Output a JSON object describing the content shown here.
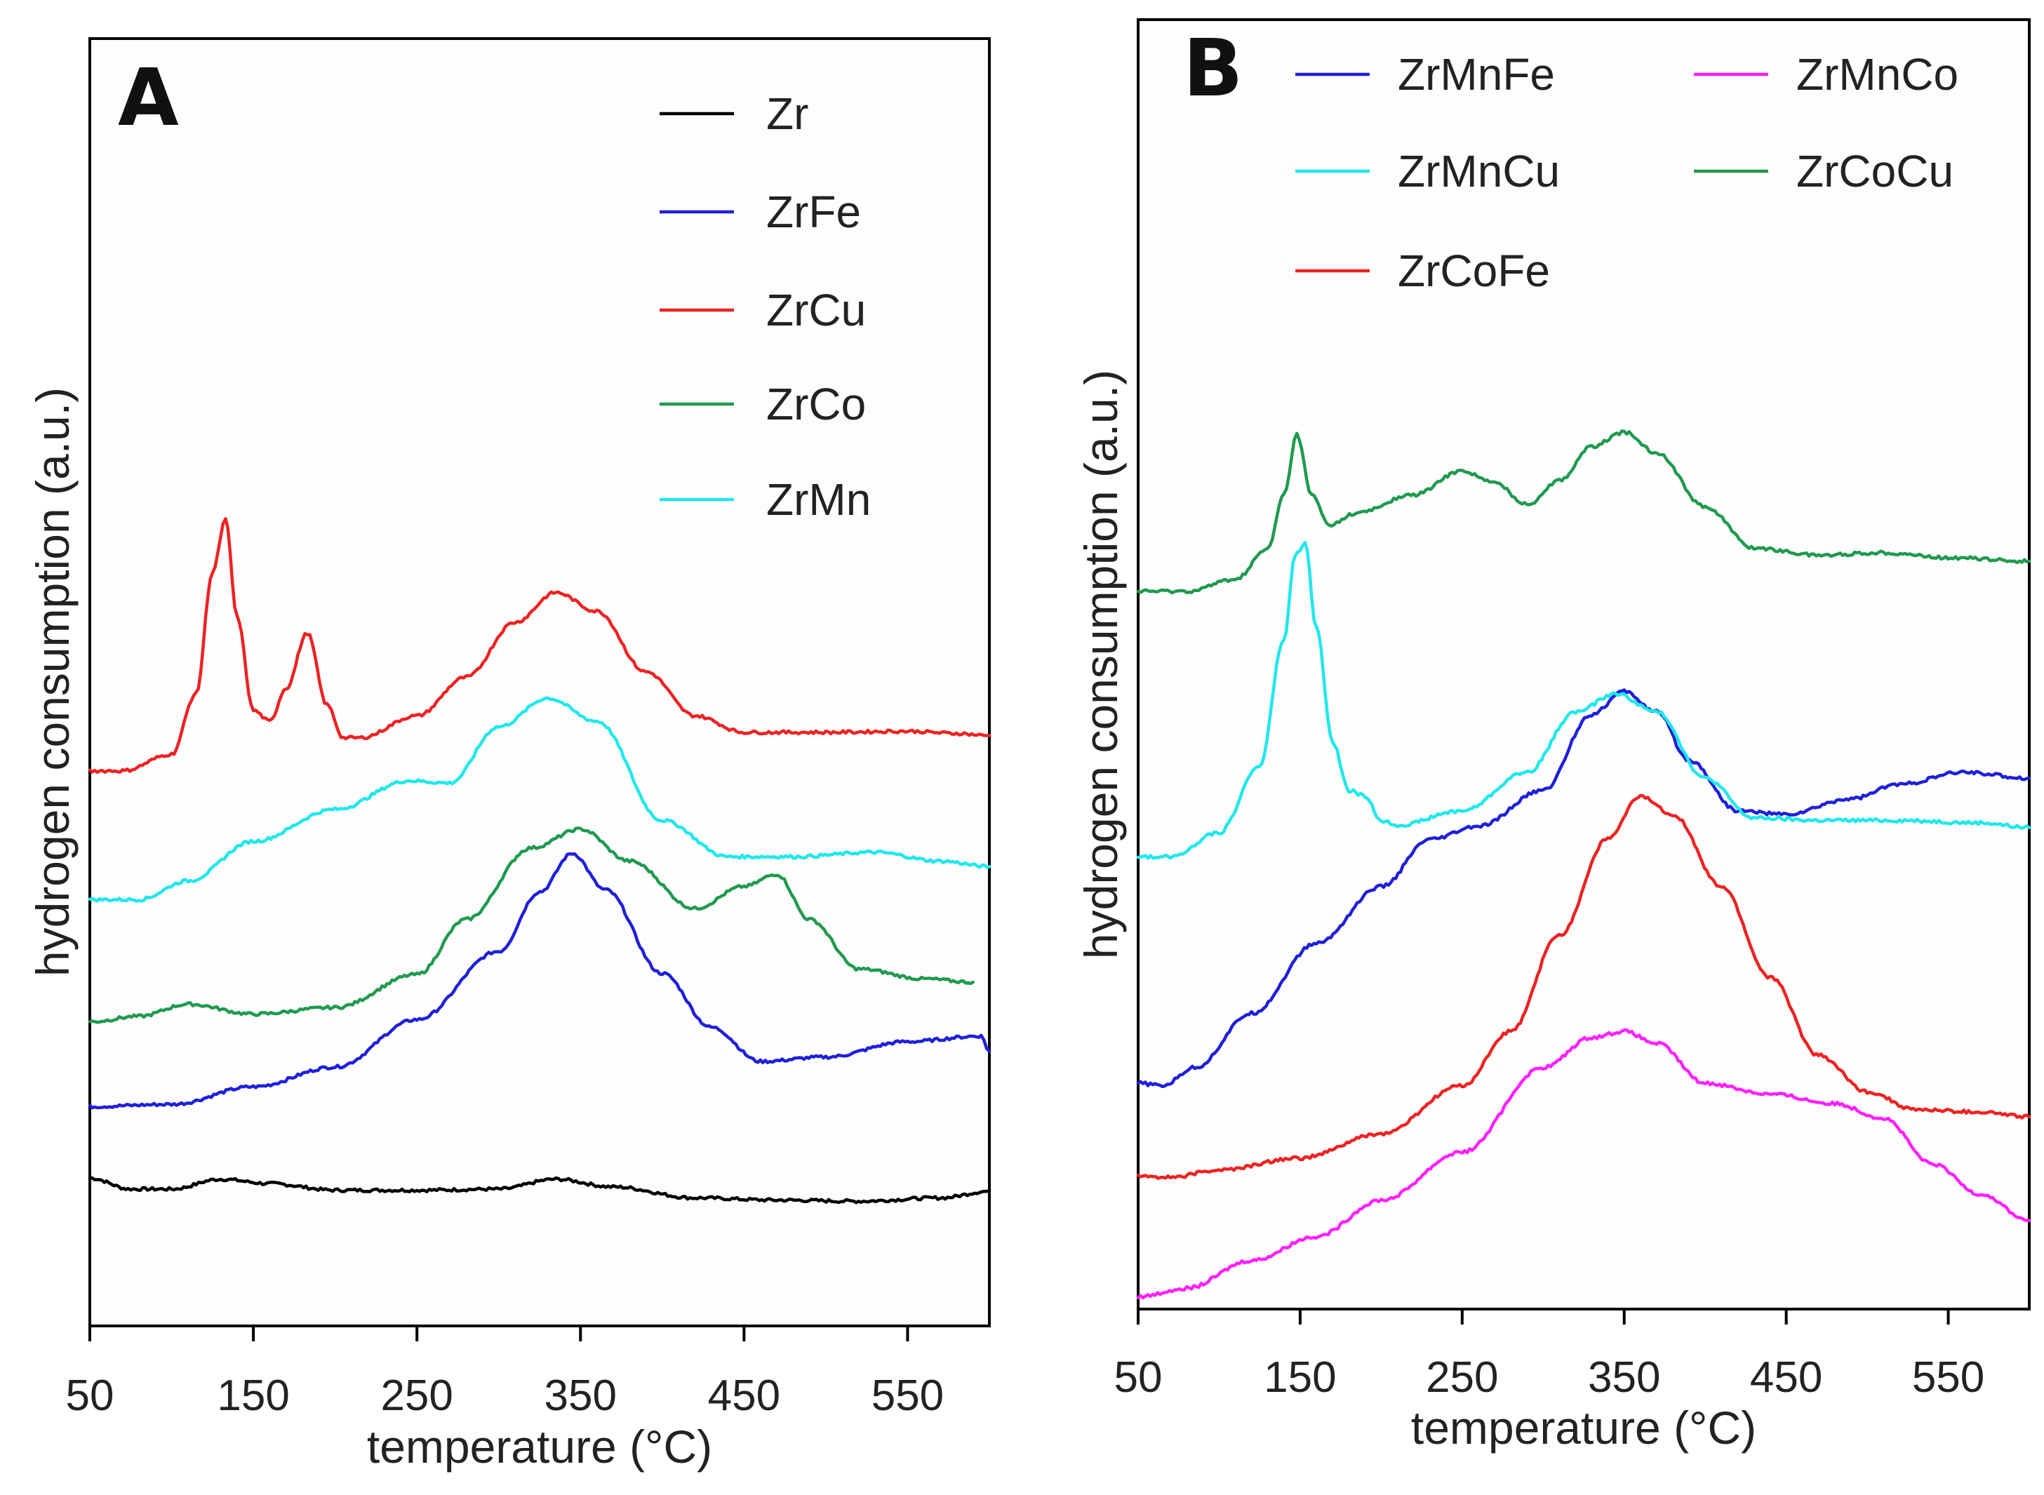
{
  "chart_data": [
    {
      "type": "line",
      "panel_label": "A",
      "xlabel": "temperature (°C)",
      "ylabel": "hydrogen consumption (a.u.)",
      "xlim": [
        50,
        600
      ],
      "xticks": [
        50,
        150,
        250,
        350,
        450,
        550
      ],
      "ylim": [
        0,
        100
      ],
      "y_tick_labels": false,
      "legend_position": "top-right",
      "series": [
        {
          "name": "Zr",
          "color": "#000000",
          "x": [
            50,
            75,
            100,
            130,
            160,
            200,
            250,
            300,
            335,
            370,
            420,
            470,
            520,
            570,
            600
          ],
          "y": [
            7.0,
            6.0,
            6.0,
            6.9,
            6.5,
            5.9,
            5.9,
            6.0,
            6.9,
            6.2,
            5.2,
            5.0,
            4.9,
            5.2,
            5.8
          ]
        },
        {
          "name": "ZrFe",
          "color": "#1f1fdb",
          "x": [
            50,
            100,
            150,
            200,
            250,
            300,
            325,
            345,
            365,
            400,
            430,
            460,
            500,
            550,
            595,
            600
          ],
          "y": [
            13.5,
            13.7,
            15.3,
            17.1,
            21.4,
            27.6,
            33.0,
            36.5,
            33.2,
            25.6,
            20.7,
            17.6,
            18.0,
            19.4,
            19.9,
            18.5
          ]
        },
        {
          "name": "ZrCo",
          "color": "#1f9a4f",
          "x": [
            50,
            80,
            110,
            150,
            200,
            250,
            280,
            320,
            350,
            380,
            420,
            450,
            470,
            490,
            520,
            560,
            590
          ],
          "y": [
            21.2,
            21.7,
            22.8,
            21.9,
            22.5,
            25.5,
            30.5,
            37.0,
            38.7,
            35.8,
            31.5,
            33.5,
            34.6,
            30.5,
            26.0,
            25.1,
            24.8
          ]
        },
        {
          "name": "ZrMn",
          "color": "#1fe8ec",
          "x": [
            50,
            80,
            110,
            150,
            200,
            245,
            270,
            300,
            330,
            360,
            400,
            440,
            480,
            530,
            570,
            600
          ],
          "y": [
            32.3,
            32.3,
            34.0,
            37.6,
            40.5,
            43.1,
            42.9,
            48.0,
            50.6,
            48.5,
            39.5,
            36.2,
            36.2,
            36.6,
            35.8,
            35.3
          ]
        },
        {
          "name": "ZrCu",
          "color": "#ee2222",
          "x": [
            50,
            70,
            100,
            115,
            125,
            133,
            140,
            150,
            160,
            170,
            183,
            195,
            205,
            215,
            250,
            280,
            310,
            335,
            360,
            390,
            420,
            450,
            500,
            550,
            580,
            600
          ],
          "y": [
            44.0,
            44.0,
            45.5,
            51.0,
            62.0,
            66.8,
            58.0,
            49.5,
            48.5,
            51.5,
            56.5,
            50.0,
            47.0,
            47.0,
            49.0,
            52.5,
            57.5,
            60.2,
            58.5,
            53.0,
            49.0,
            47.5,
            47.5,
            47.6,
            47.4,
            47.2
          ]
        }
      ]
    },
    {
      "type": "line",
      "panel_label": "B",
      "xlabel": "temperature (°C)",
      "ylabel": "hydrogen consumption (a.u.)",
      "xlim": [
        50,
        600
      ],
      "xticks": [
        50,
        150,
        250,
        350,
        450,
        550
      ],
      "ylim": [
        0,
        100
      ],
      "y_tick_labels": false,
      "legend_position": "top",
      "series": [
        {
          "name": "ZrMnFe",
          "color": "#1f1fdb",
          "x": [
            50,
            65,
            85,
            120,
            160,
            200,
            230,
            260,
            300,
            330,
            350,
            370,
            390,
            420,
            450,
            490,
            520,
            560,
            600
          ],
          "y": [
            18.2,
            18.0,
            19.5,
            24.0,
            29.8,
            34.5,
            38.4,
            39.5,
            42.5,
            48.8,
            50.7,
            49.0,
            45.0,
            40.8,
            40.5,
            41.8,
            43.0,
            44.0,
            43.5
          ]
        },
        {
          "name": "ZrCoFe",
          "color": "#ee2222",
          "x": [
            50,
            70,
            100,
            150,
            200,
            250,
            280,
            310,
            340,
            360,
            380,
            410,
            440,
            470,
            500,
            530,
            570,
            600
          ],
          "y": [
            10.5,
            10.4,
            11.0,
            12.0,
            14.0,
            18.0,
            22.5,
            30.5,
            38.5,
            42.0,
            40.5,
            34.5,
            27.0,
            20.5,
            17.5,
            16.0,
            15.8,
            15.4
          ]
        },
        {
          "name": "ZrMnCu",
          "color": "#1fe8ec",
          "x": [
            50,
            70,
            100,
            125,
            140,
            147,
            153,
            160,
            170,
            180,
            190,
            200,
            210,
            250,
            290,
            320,
            345,
            370,
            400,
            430,
            470,
            520,
            570,
            600
          ],
          "y": [
            37.0,
            37.0,
            39.0,
            44.5,
            55.0,
            62.0,
            63.0,
            56.0,
            46.5,
            42.5,
            42.0,
            40.0,
            39.6,
            40.8,
            44.0,
            49.0,
            50.5,
            49.0,
            43.5,
            40.2,
            40.0,
            40.0,
            39.8,
            39.4
          ]
        },
        {
          "name": "ZrMnCo",
          "color": "#ff1fff",
          "x": [
            50,
            80,
            120,
            160,
            200,
            250,
            300,
            330,
            350,
            370,
            400,
            440,
            480,
            510,
            540,
            570,
            600
          ],
          "y": [
            0.5,
            1.2,
            3.5,
            5.5,
            8.5,
            12.5,
            19.5,
            22.0,
            22.5,
            21.5,
            18.2,
            17.3,
            16.5,
            15.3,
            11.5,
            9.0,
            6.8
          ]
        },
        {
          "name": "ZrCoCu",
          "color": "#1f9a4f",
          "x": [
            50,
            80,
            110,
            130,
            140,
            148,
            157,
            168,
            185,
            220,
            250,
            270,
            290,
            310,
            330,
            350,
            370,
            400,
            430,
            470,
            510,
            550,
            600
          ],
          "y": [
            59.0,
            59.0,
            60.0,
            62.5,
            67.0,
            72.0,
            67.0,
            64.5,
            65.5,
            67.0,
            69.0,
            68.0,
            66.2,
            68.2,
            71.0,
            72.2,
            70.5,
            66.0,
            62.6,
            62.0,
            62.2,
            61.8,
            61.5
          ]
        }
      ]
    }
  ]
}
